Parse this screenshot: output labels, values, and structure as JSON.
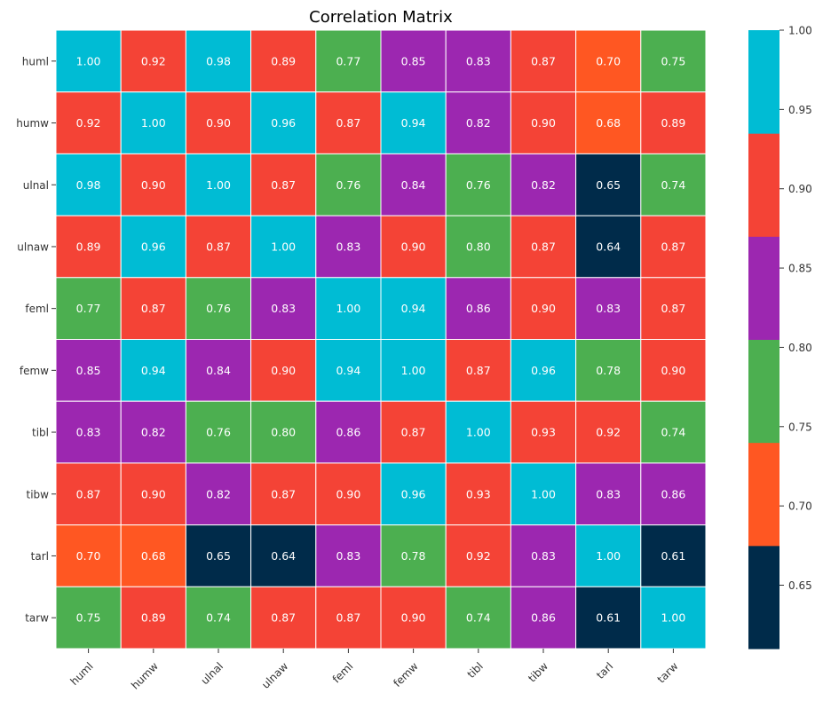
{
  "chart_data": {
    "type": "heatmap",
    "title": "Correlation Matrix",
    "rows": [
      "huml",
      "humw",
      "ulnal",
      "ulnaw",
      "feml",
      "femw",
      "tibl",
      "tibw",
      "tarl",
      "tarw"
    ],
    "cols": [
      "huml",
      "humw",
      "ulnal",
      "ulnaw",
      "feml",
      "femw",
      "tibl",
      "tibw",
      "tarl",
      "tarw"
    ],
    "values": [
      [
        1.0,
        0.92,
        0.98,
        0.89,
        0.77,
        0.85,
        0.83,
        0.87,
        0.7,
        0.75
      ],
      [
        0.92,
        1.0,
        0.9,
        0.96,
        0.87,
        0.94,
        0.82,
        0.9,
        0.68,
        0.89
      ],
      [
        0.98,
        0.9,
        1.0,
        0.87,
        0.76,
        0.84,
        0.76,
        0.82,
        0.65,
        0.74
      ],
      [
        0.89,
        0.96,
        0.87,
        1.0,
        0.83,
        0.9,
        0.8,
        0.87,
        0.64,
        0.87
      ],
      [
        0.77,
        0.87,
        0.76,
        0.83,
        1.0,
        0.94,
        0.86,
        0.9,
        0.83,
        0.87
      ],
      [
        0.85,
        0.94,
        0.84,
        0.9,
        0.94,
        1.0,
        0.87,
        0.96,
        0.78,
        0.9
      ],
      [
        0.83,
        0.82,
        0.76,
        0.8,
        0.86,
        0.87,
        1.0,
        0.93,
        0.92,
        0.74
      ],
      [
        0.87,
        0.9,
        0.82,
        0.87,
        0.9,
        0.96,
        0.93,
        1.0,
        0.83,
        0.86
      ],
      [
        0.7,
        0.68,
        0.65,
        0.64,
        0.83,
        0.78,
        0.92,
        0.83,
        1.0,
        0.61
      ],
      [
        0.75,
        0.89,
        0.74,
        0.87,
        0.87,
        0.9,
        0.74,
        0.86,
        0.61,
        1.0
      ]
    ],
    "colorbar": {
      "min": 0.61,
      "max": 1.0,
      "colors": [
        "#002b4a",
        "#ff5722",
        "#4caf50",
        "#9c27b0",
        "#f44336",
        "#00bcd4"
      ],
      "ticks": [
        "1.00",
        "0.95",
        "0.90",
        "0.85",
        "0.80",
        "0.75",
        "0.70",
        "0.65"
      ],
      "tick_values": [
        1.0,
        0.95,
        0.9,
        0.85,
        0.8,
        0.75,
        0.7,
        0.65
      ]
    },
    "grid": true,
    "legend": "colorbar-right"
  }
}
